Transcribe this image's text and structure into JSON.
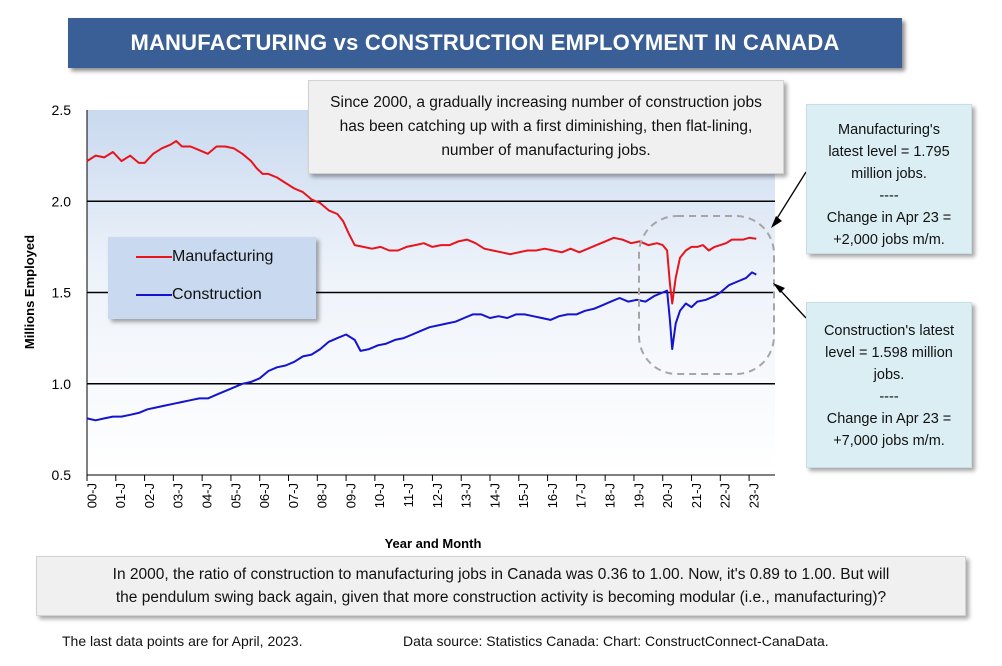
{
  "title": "MANUFACTURING vs CONSTRUCTION EMPLOYMENT IN CANADA",
  "callouts": {
    "top": "Since 2000, a gradually increasing number of construction jobs has been catching up with a first diminishing, then flat-lining, number of manufacturing jobs.",
    "manufacturing": [
      "Manufacturing's",
      "latest level = 1.795",
      "million jobs.",
      "----",
      "Change in Apr 23 =",
      "+2,000 jobs m/m."
    ],
    "construction": [
      "Construction's latest",
      "level = 1.598 million",
      "jobs.",
      "----",
      "Change in Apr 23 =",
      "+7,000 jobs m/m."
    ],
    "bottom": [
      "In 2000, the ratio of construction to manufacturing jobs in Canada was 0.36 to 1.00. Now, it's 0.89 to 1.00. But will",
      "the pendulum swing back again, given that more construction activity is becoming modular (i.e., manufacturing)?"
    ]
  },
  "footnotes": {
    "left": "The last data points are for April, 2023.",
    "right": "Data source: Statistics Canada: Chart: ConstructConnect-CanaData."
  },
  "colors": {
    "manufacturing": "#e8141c",
    "construction": "#1414d0",
    "title_bg": "#3a5f96"
  },
  "chart_data": {
    "type": "line",
    "title": "MANUFACTURING vs CONSTRUCTION EMPLOYMENT IN CANADA",
    "xlabel": "Year and Month",
    "ylabel": "Millions Employed",
    "ylim": [
      0.5,
      2.5
    ],
    "yticks": [
      "0.5",
      "1.0",
      "1.5",
      "2.0",
      "2.5"
    ],
    "xtick_labels": [
      "00-J",
      "01-J",
      "02-J",
      "03-J",
      "04-J",
      "05-J",
      "06-J",
      "07-J",
      "08-J",
      "09-J",
      "10-J",
      "11-J",
      "12-J",
      "13-J",
      "14-J",
      "15-J",
      "16-J",
      "17-J",
      "18-J",
      "19-J",
      "20-J",
      "21-J",
      "22-J",
      "23-J"
    ],
    "legend": [
      "Manufacturing",
      "Construction"
    ],
    "legend_position": "left-middle",
    "x_start": 2000.0,
    "x_end": 2023.25,
    "series": [
      {
        "name": "Manufacturing",
        "points": [
          [
            2000.0,
            2.22
          ],
          [
            2000.3,
            2.25
          ],
          [
            2000.6,
            2.24
          ],
          [
            2000.9,
            2.27
          ],
          [
            2001.2,
            2.22
          ],
          [
            2001.5,
            2.25
          ],
          [
            2001.8,
            2.21
          ],
          [
            2002.0,
            2.21
          ],
          [
            2002.3,
            2.26
          ],
          [
            2002.6,
            2.29
          ],
          [
            2002.9,
            2.31
          ],
          [
            2003.1,
            2.33
          ],
          [
            2003.3,
            2.3
          ],
          [
            2003.6,
            2.3
          ],
          [
            2003.9,
            2.28
          ],
          [
            2004.2,
            2.26
          ],
          [
            2004.5,
            2.3
          ],
          [
            2004.8,
            2.3
          ],
          [
            2005.1,
            2.29
          ],
          [
            2005.4,
            2.26
          ],
          [
            2005.7,
            2.22
          ],
          [
            2005.9,
            2.18
          ],
          [
            2006.1,
            2.15
          ],
          [
            2006.3,
            2.15
          ],
          [
            2006.6,
            2.13
          ],
          [
            2006.9,
            2.1
          ],
          [
            2007.2,
            2.07
          ],
          [
            2007.5,
            2.05
          ],
          [
            2007.8,
            2.01
          ],
          [
            2008.1,
            1.99
          ],
          [
            2008.4,
            1.95
          ],
          [
            2008.7,
            1.93
          ],
          [
            2008.9,
            1.89
          ],
          [
            2009.1,
            1.82
          ],
          [
            2009.3,
            1.76
          ],
          [
            2009.6,
            1.75
          ],
          [
            2009.9,
            1.74
          ],
          [
            2010.2,
            1.75
          ],
          [
            2010.5,
            1.73
          ],
          [
            2010.8,
            1.73
          ],
          [
            2011.1,
            1.75
          ],
          [
            2011.4,
            1.76
          ],
          [
            2011.7,
            1.77
          ],
          [
            2012.0,
            1.75
          ],
          [
            2012.3,
            1.76
          ],
          [
            2012.6,
            1.76
          ],
          [
            2012.9,
            1.78
          ],
          [
            2013.2,
            1.79
          ],
          [
            2013.5,
            1.77
          ],
          [
            2013.8,
            1.74
          ],
          [
            2014.1,
            1.73
          ],
          [
            2014.4,
            1.72
          ],
          [
            2014.7,
            1.71
          ],
          [
            2015.0,
            1.72
          ],
          [
            2015.3,
            1.73
          ],
          [
            2015.6,
            1.73
          ],
          [
            2015.9,
            1.74
          ],
          [
            2016.2,
            1.73
          ],
          [
            2016.5,
            1.72
          ],
          [
            2016.8,
            1.74
          ],
          [
            2017.1,
            1.72
          ],
          [
            2017.4,
            1.74
          ],
          [
            2017.7,
            1.76
          ],
          [
            2018.0,
            1.78
          ],
          [
            2018.3,
            1.8
          ],
          [
            2018.6,
            1.79
          ],
          [
            2018.9,
            1.77
          ],
          [
            2019.2,
            1.78
          ],
          [
            2019.5,
            1.76
          ],
          [
            2019.8,
            1.77
          ],
          [
            2020.0,
            1.76
          ],
          [
            2020.15,
            1.73
          ],
          [
            2020.25,
            1.55
          ],
          [
            2020.33,
            1.44
          ],
          [
            2020.45,
            1.58
          ],
          [
            2020.6,
            1.69
          ],
          [
            2020.8,
            1.73
          ],
          [
            2021.0,
            1.75
          ],
          [
            2021.2,
            1.75
          ],
          [
            2021.4,
            1.76
          ],
          [
            2021.6,
            1.73
          ],
          [
            2021.8,
            1.75
          ],
          [
            2022.0,
            1.76
          ],
          [
            2022.2,
            1.77
          ],
          [
            2022.4,
            1.79
          ],
          [
            2022.6,
            1.79
          ],
          [
            2022.8,
            1.79
          ],
          [
            2023.0,
            1.8
          ],
          [
            2023.25,
            1.795
          ]
        ]
      },
      {
        "name": "Construction",
        "points": [
          [
            2000.0,
            0.81
          ],
          [
            2000.3,
            0.8
          ],
          [
            2000.6,
            0.81
          ],
          [
            2000.9,
            0.82
          ],
          [
            2001.2,
            0.82
          ],
          [
            2001.5,
            0.83
          ],
          [
            2001.8,
            0.84
          ],
          [
            2002.1,
            0.86
          ],
          [
            2002.4,
            0.87
          ],
          [
            2002.7,
            0.88
          ],
          [
            2003.0,
            0.89
          ],
          [
            2003.3,
            0.9
          ],
          [
            2003.6,
            0.91
          ],
          [
            2003.9,
            0.92
          ],
          [
            2004.2,
            0.92
          ],
          [
            2004.5,
            0.94
          ],
          [
            2004.8,
            0.96
          ],
          [
            2005.1,
            0.98
          ],
          [
            2005.4,
            1.0
          ],
          [
            2005.7,
            1.01
          ],
          [
            2006.0,
            1.03
          ],
          [
            2006.3,
            1.07
          ],
          [
            2006.6,
            1.09
          ],
          [
            2006.9,
            1.1
          ],
          [
            2007.2,
            1.12
          ],
          [
            2007.5,
            1.15
          ],
          [
            2007.8,
            1.16
          ],
          [
            2008.1,
            1.19
          ],
          [
            2008.4,
            1.23
          ],
          [
            2008.7,
            1.25
          ],
          [
            2009.0,
            1.27
          ],
          [
            2009.3,
            1.24
          ],
          [
            2009.5,
            1.18
          ],
          [
            2009.8,
            1.19
          ],
          [
            2010.1,
            1.21
          ],
          [
            2010.4,
            1.22
          ],
          [
            2010.7,
            1.24
          ],
          [
            2011.0,
            1.25
          ],
          [
            2011.3,
            1.27
          ],
          [
            2011.6,
            1.29
          ],
          [
            2011.9,
            1.31
          ],
          [
            2012.2,
            1.32
          ],
          [
            2012.5,
            1.33
          ],
          [
            2012.8,
            1.34
          ],
          [
            2013.1,
            1.36
          ],
          [
            2013.4,
            1.38
          ],
          [
            2013.7,
            1.38
          ],
          [
            2014.0,
            1.36
          ],
          [
            2014.3,
            1.37
          ],
          [
            2014.6,
            1.36
          ],
          [
            2014.9,
            1.38
          ],
          [
            2015.2,
            1.38
          ],
          [
            2015.5,
            1.37
          ],
          [
            2015.8,
            1.36
          ],
          [
            2016.1,
            1.35
          ],
          [
            2016.4,
            1.37
          ],
          [
            2016.7,
            1.38
          ],
          [
            2017.0,
            1.38
          ],
          [
            2017.3,
            1.4
          ],
          [
            2017.6,
            1.41
          ],
          [
            2017.9,
            1.43
          ],
          [
            2018.2,
            1.45
          ],
          [
            2018.5,
            1.47
          ],
          [
            2018.8,
            1.45
          ],
          [
            2019.1,
            1.46
          ],
          [
            2019.4,
            1.45
          ],
          [
            2019.7,
            1.48
          ],
          [
            2020.0,
            1.5
          ],
          [
            2020.15,
            1.51
          ],
          [
            2020.25,
            1.35
          ],
          [
            2020.33,
            1.19
          ],
          [
            2020.45,
            1.33
          ],
          [
            2020.6,
            1.4
          ],
          [
            2020.8,
            1.44
          ],
          [
            2021.0,
            1.42
          ],
          [
            2021.2,
            1.45
          ],
          [
            2021.5,
            1.46
          ],
          [
            2021.8,
            1.48
          ],
          [
            2022.0,
            1.5
          ],
          [
            2022.3,
            1.54
          ],
          [
            2022.6,
            1.56
          ],
          [
            2022.9,
            1.58
          ],
          [
            2023.1,
            1.61
          ],
          [
            2023.25,
            1.598
          ]
        ]
      }
    ]
  }
}
